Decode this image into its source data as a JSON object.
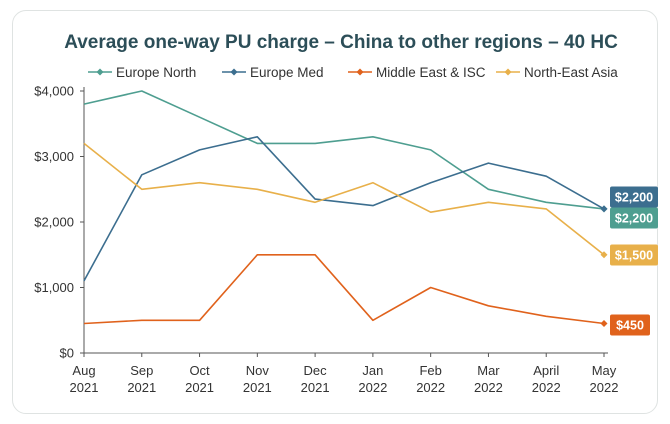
{
  "chart_data": {
    "type": "line",
    "title": "Average one-way PU charge – China to other regions – 40 HC",
    "xlabel": "",
    "ylabel": "",
    "categories": [
      [
        "Aug",
        "2021"
      ],
      [
        "Sep",
        "2021"
      ],
      [
        "Oct",
        "2021"
      ],
      [
        "Nov",
        "2021"
      ],
      [
        "Dec",
        "2021"
      ],
      [
        "Jan",
        "2022"
      ],
      [
        "Feb",
        "2022"
      ],
      [
        "Mar",
        "2022"
      ],
      [
        "April",
        "2022"
      ],
      [
        "May",
        "2022"
      ]
    ],
    "y_ticks": [
      "$0",
      "$1,000",
      "$2,000",
      "$3,000",
      "$4,000"
    ],
    "ylim": [
      0,
      4000
    ],
    "grid": false,
    "legend_position": "top",
    "series": [
      {
        "name": "Europe North",
        "color": "#4e9e90",
        "values": [
          3800,
          4000,
          3600,
          3200,
          3200,
          3300,
          3100,
          2500,
          2300,
          2200
        ],
        "end_label": "$2,200"
      },
      {
        "name": "Europe Med",
        "color": "#3c6e8f",
        "values": [
          1100,
          2720,
          3100,
          3300,
          2350,
          2250,
          2600,
          2900,
          2700,
          2200
        ],
        "end_label": "$2,200"
      },
      {
        "name": "Middle East & ISC",
        "color": "#e0621c",
        "values": [
          450,
          500,
          500,
          1500,
          1500,
          500,
          1000,
          720,
          560,
          450
        ],
        "end_label": "$450"
      },
      {
        "name": "North-East Asia",
        "color": "#e8b04a",
        "values": [
          3200,
          2500,
          2600,
          2500,
          2300,
          2600,
          2150,
          2300,
          2200,
          1500
        ],
        "end_label": "$1,500"
      }
    ]
  }
}
